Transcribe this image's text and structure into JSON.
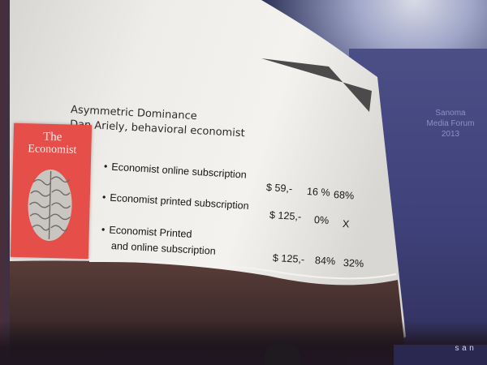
{
  "slide": {
    "title": "Asymmetric Dominance",
    "subtitle": "Dan Ariely, behavioral economist",
    "cover": {
      "line1": "The",
      "line2": "Economist"
    },
    "items": [
      {
        "bullet": "•",
        "label": "Economist online subscription",
        "price": "$ 59,-",
        "pct1": "16 %",
        "pct2": "68%"
      },
      {
        "bullet": "•",
        "label": "Economist printed subscription",
        "price": "$ 125,-",
        "pct1": "0%",
        "pct2": "X"
      },
      {
        "bullet": "•",
        "label_line1": "Economist Printed",
        "label_line2": "and online subscription",
        "price": "$ 125,-",
        "pct1": "84%",
        "pct2": "32%"
      }
    ]
  },
  "venue": {
    "banner_line1": "Sanoma",
    "banner_line2": "Media Forum",
    "banner_line3": "2013",
    "logo": "san"
  },
  "colors": {
    "cover_red": "#e64e4a",
    "slide_white": "#f1efec",
    "room_blue": "#343a6a"
  }
}
